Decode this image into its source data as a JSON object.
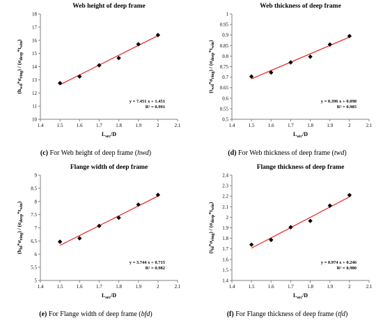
{
  "panels": [
    {
      "id": "c",
      "caption_tag": "(c)",
      "caption_text": "For Web height of deep frame (",
      "caption_sym": "hwd",
      "caption_end": ")",
      "chart_data": {
        "type": "scatter",
        "title": "Web height of deep frame",
        "xlabel": "Lsec/D",
        "ylabel": "(hwd*σring) / (σdeep*twin)",
        "xlim": [
          1.4,
          2.1
        ],
        "ylim": [
          10,
          18
        ],
        "xticks": [
          "1.4",
          "1.5",
          "1.6",
          "1.7",
          "1.8",
          "1.9",
          "2",
          "2.1"
        ],
        "yticks": [
          "10",
          "11",
          "12",
          "13",
          "14",
          "15",
          "16",
          "17",
          "18"
        ],
        "x": [
          1.5,
          1.6,
          1.7,
          1.8,
          1.9,
          2.0
        ],
        "y": [
          12.75,
          13.25,
          14.1,
          14.65,
          15.7,
          16.4
        ],
        "fit": {
          "slope": 7.451,
          "intercept": 1.451
        },
        "equation": "y = 7.451 x + 1.451",
        "r2": "R² = 0.991",
        "marker_color": "#000000",
        "line_color": "#e8201c"
      }
    },
    {
      "id": "d",
      "caption_tag": "(d)",
      "caption_text": "For Web thickness of deep frame (",
      "caption_sym": "twd",
      "caption_end": ")",
      "chart_data": {
        "type": "scatter",
        "title": "Web thickness of deep frame",
        "xlabel": "Lsec/D",
        "ylabel": "(twd*σring) / (σdeep*twin)",
        "xlim": [
          1.4,
          2.1
        ],
        "ylim": [
          0.5,
          1
        ],
        "xticks": [
          "1.4",
          "1.5",
          "1.6",
          "1.7",
          "1.8",
          "1.9",
          "2",
          "2.1"
        ],
        "yticks": [
          "0.5",
          "0.55",
          "0.6",
          "0.65",
          "0.7",
          "0.75",
          "0.8",
          "0.85",
          "0.9",
          "0.95",
          "1"
        ],
        "x": [
          1.5,
          1.6,
          1.7,
          1.8,
          1.9,
          2.0
        ],
        "y": [
          0.703,
          0.722,
          0.77,
          0.797,
          0.855,
          0.895
        ],
        "fit": {
          "slope": 0.396,
          "intercept": 0.098
        },
        "equation": "y = 0.396 x + 0.098",
        "r2": "R² = 0.985",
        "marker_color": "#000000",
        "line_color": "#e8201c"
      }
    },
    {
      "id": "e",
      "caption_tag": "(e)",
      "caption_text": "For Flange width of deep frame (",
      "caption_sym": "bfd",
      "caption_end": ")",
      "chart_data": {
        "type": "scatter",
        "title": "Flange width of deep frame",
        "xlabel": "Lsec/D",
        "ylabel": "(bfd*σring) / (σdeep*twin)",
        "xlim": [
          1.4,
          2.1
        ],
        "ylim": [
          5,
          9
        ],
        "xticks": [
          "1.4",
          "1.5",
          "1.6",
          "1.7",
          "1.8",
          "1.9",
          "2",
          "2.1"
        ],
        "yticks": [
          "5",
          "5.5",
          "6",
          "6.5",
          "7",
          "7.5",
          "8",
          "8.5",
          "9"
        ],
        "x": [
          1.5,
          1.6,
          1.7,
          1.8,
          1.9,
          2.0
        ],
        "y": [
          6.47,
          6.6,
          7.07,
          7.38,
          7.88,
          8.25
        ],
        "fit": {
          "slope": 3.744,
          "intercept": 0.715
        },
        "equation": "y = 3.744 x + 0.715",
        "r2": "R² = 0.982",
        "marker_color": "#000000",
        "line_color": "#e8201c"
      }
    },
    {
      "id": "f",
      "caption_tag": "(f)",
      "caption_text": "For Flange thickness of deep frame (",
      "caption_sym": "tfd",
      "caption_end": ")",
      "chart_data": {
        "type": "scatter",
        "title": "Flange thickness of deep frame",
        "xlabel": "Lsec/D",
        "ylabel": "(tfd*σring) / (σdeep*twin)",
        "xlim": [
          1.4,
          2.1
        ],
        "ylim": [
          1.4,
          2.4
        ],
        "xticks": [
          "1.4",
          "1.5",
          "1.6",
          "1.7",
          "1.8",
          "1.9",
          "2",
          "2.1"
        ],
        "yticks": [
          "1.4",
          "1.5",
          "1.6",
          "1.7",
          "1.8",
          "1.9",
          "2",
          "2.1",
          "2.2",
          "2.3",
          "2.4"
        ],
        "x": [
          1.5,
          1.6,
          1.7,
          1.8,
          1.9,
          2.0
        ],
        "y": [
          1.74,
          1.785,
          1.905,
          1.965,
          2.11,
          2.21
        ],
        "fit": {
          "slope": 0.974,
          "intercept": 0.246
        },
        "equation": "y = 0.974 x + 0.246",
        "r2": "R² = 0.980",
        "marker_color": "#000000",
        "line_color": "#e8201c"
      }
    }
  ]
}
